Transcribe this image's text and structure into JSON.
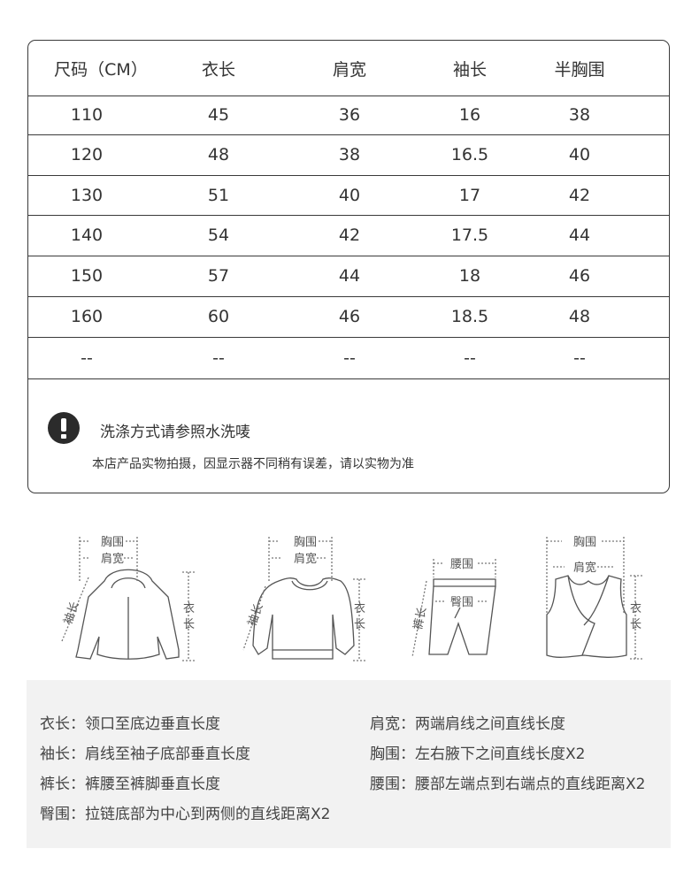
{
  "table": {
    "headers": [
      "尺码（CM）",
      "衣长",
      "肩宽",
      "袖长",
      "半胸围"
    ],
    "rows": [
      [
        "110",
        "45",
        "36",
        "16",
        "38"
      ],
      [
        "120",
        "48",
        "38",
        "16.5",
        "40"
      ],
      [
        "130",
        "51",
        "40",
        "17",
        "42"
      ],
      [
        "140",
        "54",
        "42",
        "17.5",
        "44"
      ],
      [
        "150",
        "57",
        "44",
        "18",
        "46"
      ],
      [
        "160",
        "60",
        "46",
        "18.5",
        "48"
      ],
      [
        "--",
        "--",
        "--",
        "--",
        "--"
      ]
    ]
  },
  "notice": {
    "icon": "exclamation-circle-icon",
    "wash": "洗涤方式请参照水洗唛",
    "disclaimer": "本店产品实物拍摄，因显示器不同稍有误差，请以实物为准"
  },
  "illustrations": {
    "jacket": {
      "chest": "胸围",
      "shoulder": "肩宽",
      "sleeve": "袖长",
      "length": [
        "衣",
        "长"
      ]
    },
    "sweater": {
      "chest": "胸围",
      "shoulder": "肩宽",
      "sleeve": "袖长",
      "length": [
        "衣",
        "长"
      ]
    },
    "pants": {
      "waist": "腰围",
      "hip": "臀围",
      "pant_length": "裤长"
    },
    "vest": {
      "chest": "胸围",
      "shoulder": "肩宽",
      "length": [
        "衣",
        "长"
      ]
    }
  },
  "definitions": {
    "left": [
      "衣长：领口至底边垂直长度",
      "袖长：肩线至袖子底部垂直长度",
      "裤长：裤腰至裤脚垂直长度",
      "臀围：拉链底部为中心到两侧的直线距离X2"
    ],
    "right": [
      "肩宽：两端肩线之间直线长度",
      "胸围：左右腋下之间直线长度X2",
      "腰围：腰部左端点到右端点的直线距离X2"
    ]
  }
}
